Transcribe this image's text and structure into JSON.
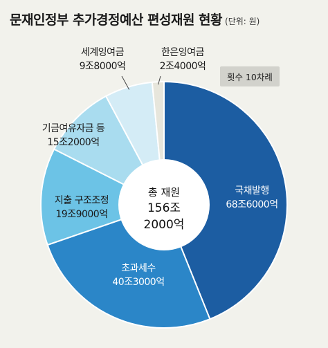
{
  "title": "문재인정부 추가경정예산 편성재원 현황",
  "unit": "(단위: 원)",
  "badge": "횟수 10차례",
  "center": {
    "label": "총 재원",
    "line1": "156조",
    "line2": "2000억"
  },
  "chart_data": {
    "type": "pie",
    "title": "문재인정부 추가경정예산 편성재원 현황",
    "unit": "(단위: 원)",
    "total": "156조 2000억",
    "slices": [
      {
        "name": "국채발행",
        "value_text": "68조6000억",
        "value": 68.6,
        "color": "#1c5da2"
      },
      {
        "name": "초과세수",
        "value_text": "40조3000억",
        "value": 40.3,
        "color": "#2b86c8"
      },
      {
        "name": "지출 구조조정",
        "value_text": "19조9000억",
        "value": 19.9,
        "color": "#6cc3e6"
      },
      {
        "name": "기금여유자금 등",
        "value_text": "15조2000억",
        "value": 15.2,
        "color": "#a9dcef"
      },
      {
        "name": "세계잉여금",
        "value_text": "9조8000억",
        "value": 9.8,
        "color": "#d4ecf6"
      },
      {
        "name": "한은잉여금",
        "value_text": "2조4000억",
        "value": 2.4,
        "color": "#e7e6dc"
      }
    ]
  }
}
